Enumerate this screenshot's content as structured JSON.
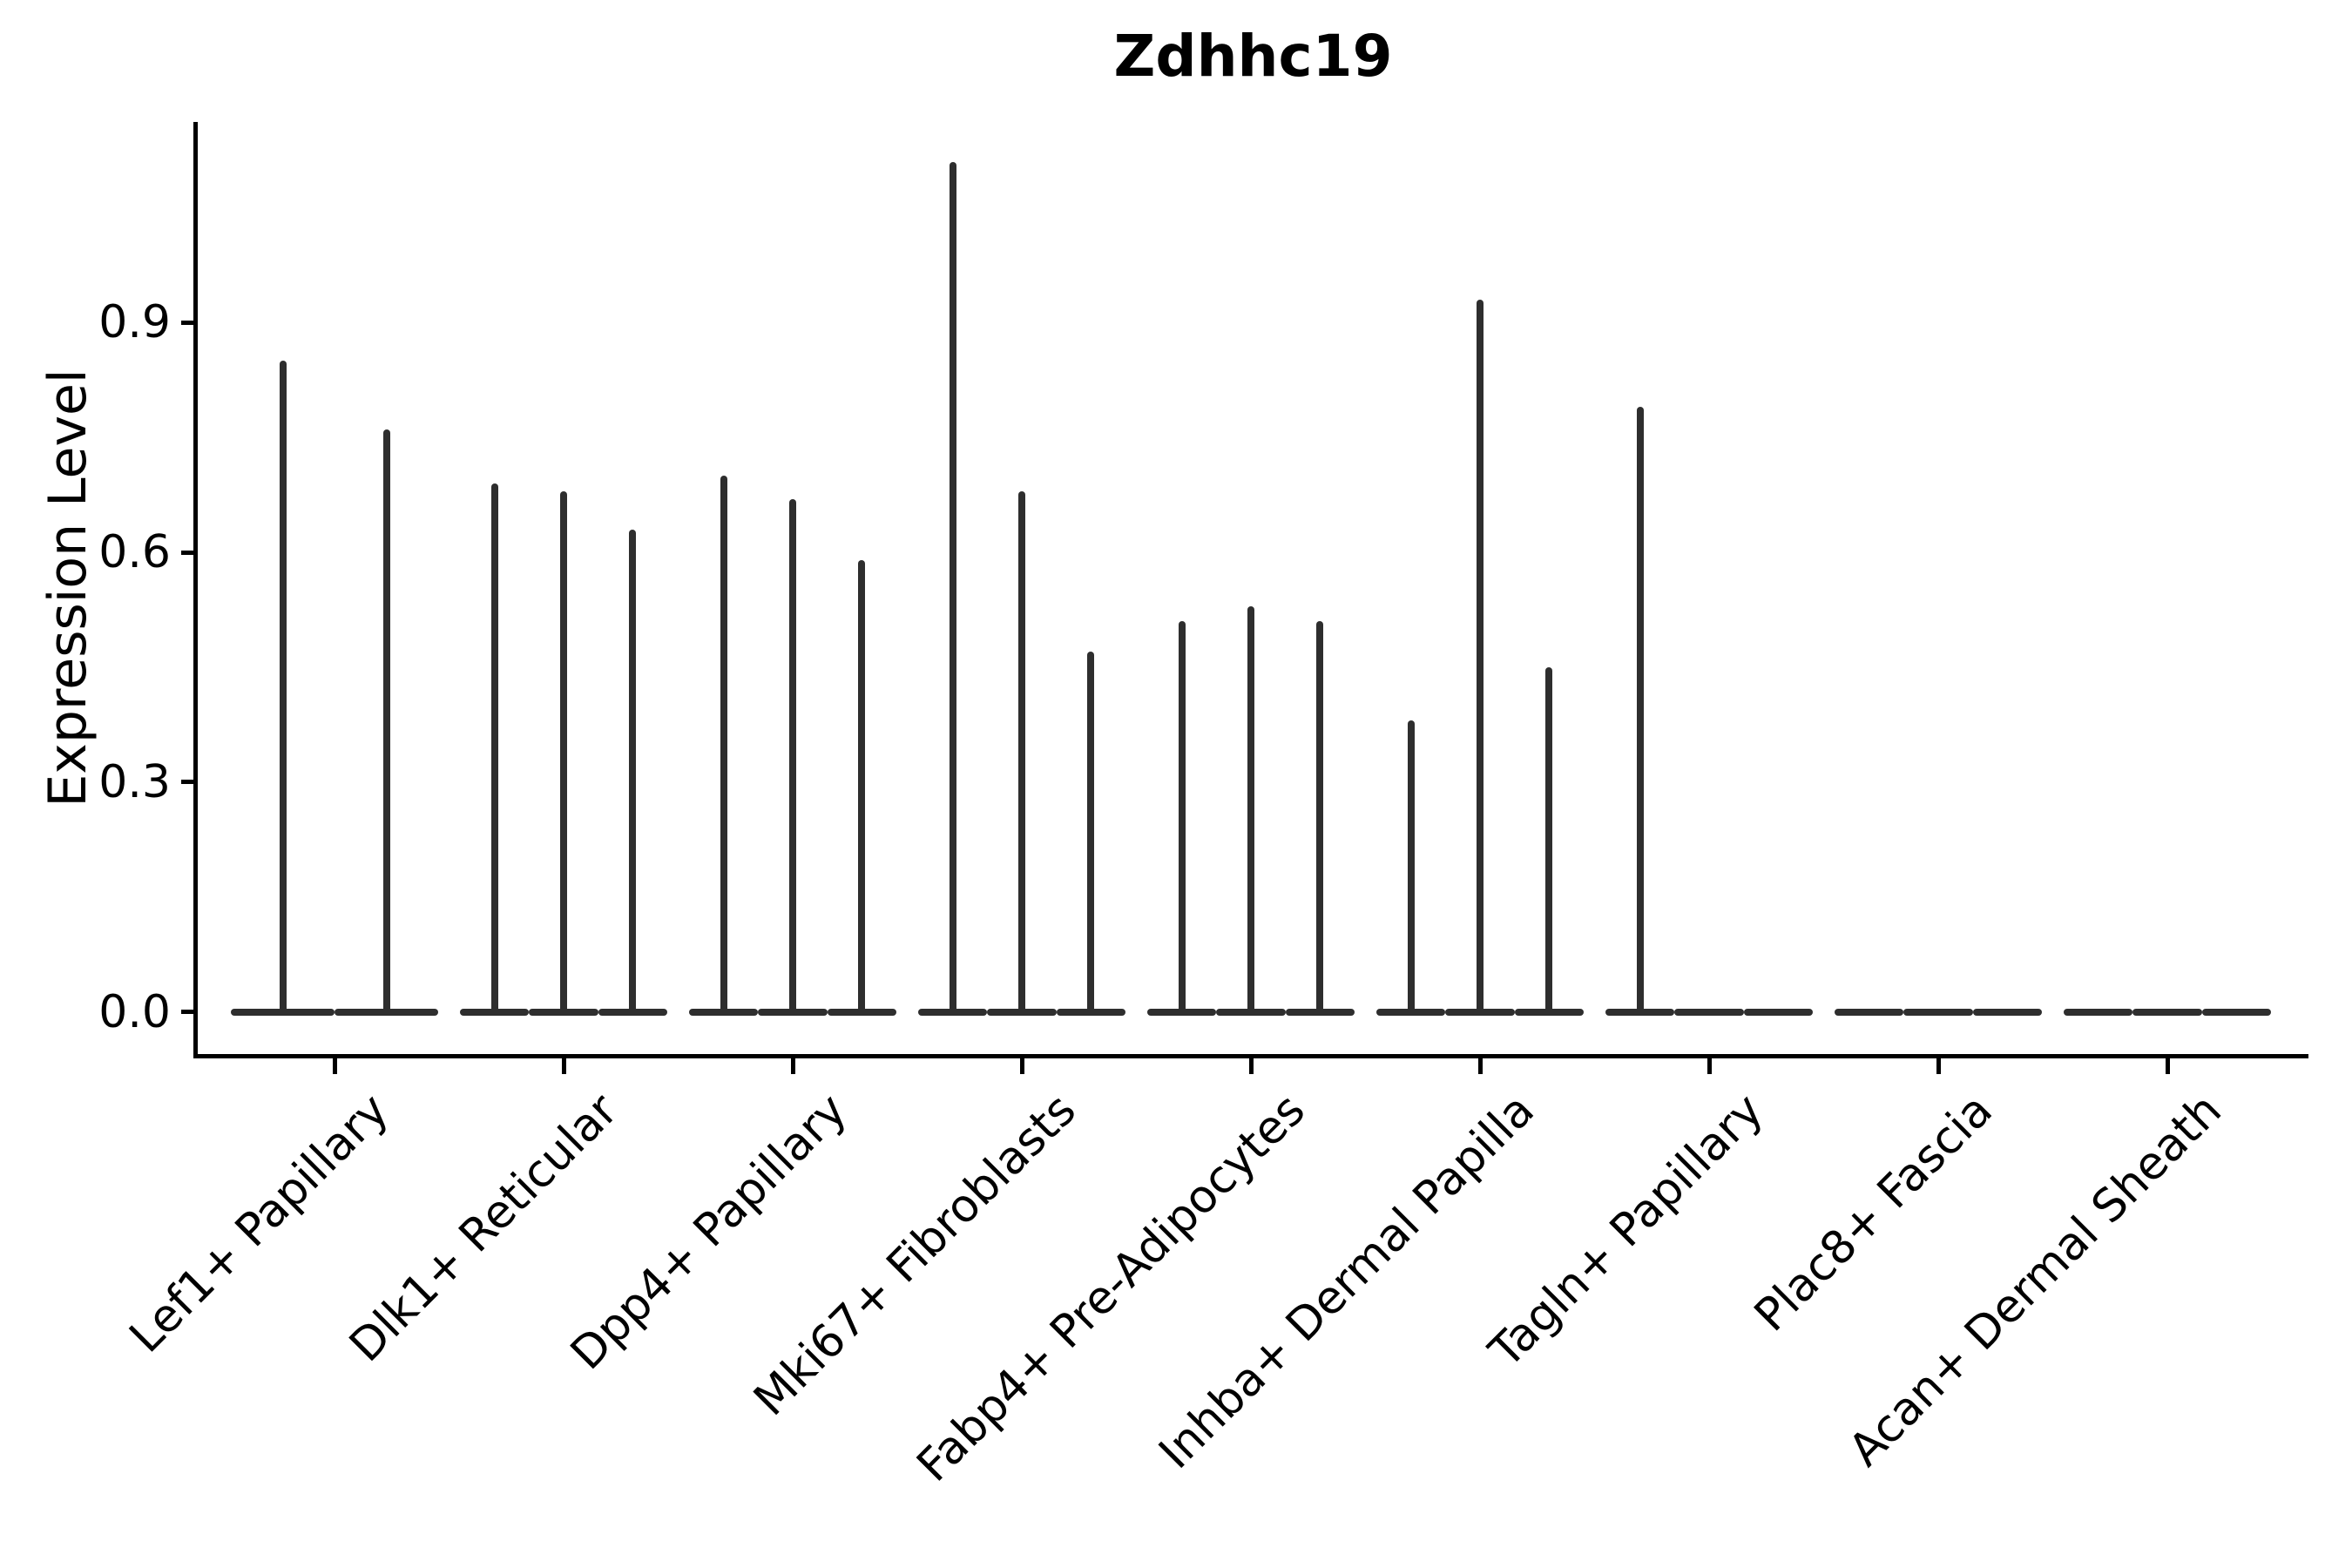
{
  "title": "Zdhhc19",
  "y_axis": {
    "label": "Expression Level",
    "ticks": [
      "0.0",
      "0.3",
      "0.6",
      "0.9"
    ]
  },
  "chart_data": {
    "type": "violin",
    "title": "Zdhhc19",
    "xlabel": "",
    "ylabel": "Expression Level",
    "ylim": [
      0,
      1.16
    ],
    "yticks": [
      0.0,
      0.3,
      0.6,
      0.9
    ],
    "grid": false,
    "legend": false,
    "style": "needle-like sparse violins sitting on flat bases at y=0; 2-3 violins per category",
    "violin_color": "#2e2e2e",
    "axis_color": "#000000",
    "categories": [
      "Lef1+ Papillary",
      "Dlk1+ Reticular",
      "Dpp4+ Papillary",
      "Mki67+ Fibroblasts",
      "Fabp4+ Pre-Adipocytes",
      "Inhba+ Dermal Papilla",
      "Tagln+ Papillary",
      "Plac8+ Fascia",
      "Acan+ Dermal Sheath"
    ],
    "groups": [
      {
        "category": "Lef1+ Papillary",
        "violin_max": [
          0.85,
          0.76
        ]
      },
      {
        "category": "Dlk1+ Reticular",
        "violin_max": [
          0.69,
          0.68,
          0.63
        ]
      },
      {
        "category": "Dpp4+ Papillary",
        "violin_max": [
          0.7,
          0.67,
          0.59
        ]
      },
      {
        "category": "Mki67+ Fibroblasts",
        "violin_max": [
          1.11,
          0.68,
          0.47
        ]
      },
      {
        "category": "Fabp4+ Pre-Adipocytes",
        "violin_max": [
          0.51,
          0.53,
          0.51
        ]
      },
      {
        "category": "Inhba+ Dermal Papilla",
        "violin_max": [
          0.38,
          0.93,
          0.45
        ]
      },
      {
        "category": "Tagln+ Papillary",
        "violin_max": [
          0.79,
          0,
          0
        ]
      },
      {
        "category": "Plac8+ Fascia",
        "violin_max": [
          0,
          0,
          0
        ]
      },
      {
        "category": "Acan+ Dermal Sheath",
        "violin_max": [
          0,
          0,
          0
        ]
      }
    ]
  }
}
